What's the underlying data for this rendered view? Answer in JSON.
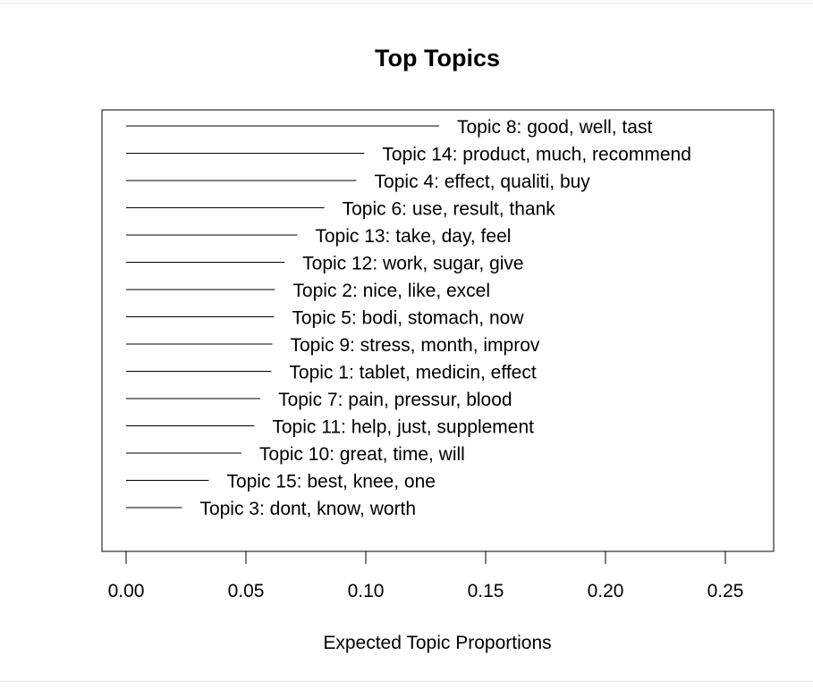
{
  "chart_data": {
    "type": "bar",
    "title": "Top Topics",
    "xlabel": "Expected Topic Proportions",
    "ylabel": "",
    "xlim": [
      0,
      0.26
    ],
    "x_ticks": [
      "0.00",
      "0.05",
      "0.10",
      "0.15",
      "0.20",
      "0.25"
    ],
    "orientation": "horizontal",
    "colors": {
      "line": "#000000",
      "text": "#000000"
    },
    "categories": [
      "Topic 8: good, well, tast",
      "Topic 14: product, much, recommend",
      "Topic 4: effect, qualiti, buy",
      "Topic 6: use, result, thank",
      "Topic 13: take, day, feel",
      "Topic 12: work, sugar, give",
      "Topic 2: nice, like, excel",
      "Topic 5: bodi, stomach, now",
      "Topic 9: stress, month, improv",
      "Topic 1: tablet, medicin, effect",
      "Topic 7: pain, pressur, blood",
      "Topic 11: help, just, supplement",
      "Topic 10: great, time, will",
      "Topic 15: best, knee, one",
      "Topic 3: dont, know, worth"
    ],
    "values": [
      0.1306,
      0.0994,
      0.0961,
      0.0827,
      0.0714,
      0.0661,
      0.0621,
      0.0617,
      0.061,
      0.0606,
      0.056,
      0.0535,
      0.0481,
      0.0345,
      0.0233
    ]
  }
}
